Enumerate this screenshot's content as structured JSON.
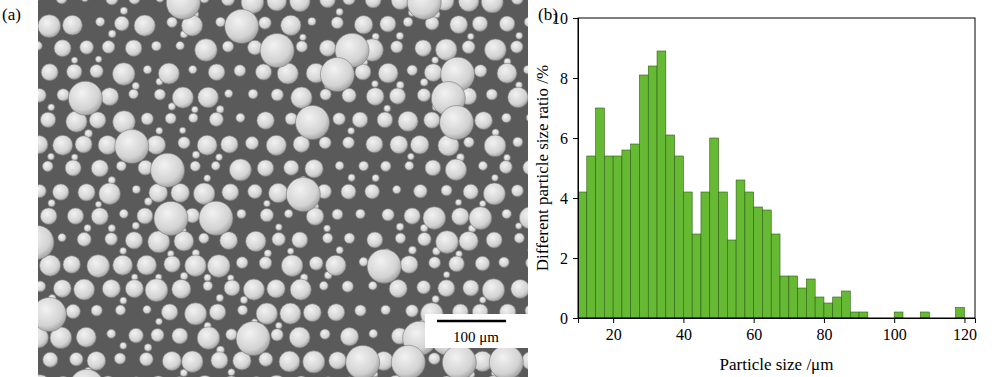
{
  "chart_data": [
    {
      "type": "image",
      "title": "(a)",
      "annotations": [
        "100 μm"
      ]
    },
    {
      "type": "histogram",
      "title": "(b)",
      "x_label": "Particle size /μm",
      "y_label": "Different particle size ratio /%",
      "bins": [
        10,
        12.5,
        15,
        17.5,
        20,
        22.5,
        25,
        27.5,
        30,
        32.5,
        35,
        37.5,
        40,
        42.5,
        45,
        47.5,
        50,
        52.5,
        55,
        57.5,
        60,
        62.5,
        65,
        67.5,
        70,
        72.5,
        75,
        77.5,
        80,
        82.5,
        85,
        87.5,
        90,
        92.5,
        95,
        97.5,
        100,
        102.5,
        105,
        107.5,
        110,
        112.5,
        115,
        117.5,
        120
      ],
      "values": [
        4.2,
        5.4,
        7.0,
        5.4,
        5.4,
        5.6,
        5.8,
        8.1,
        8.4,
        8.9,
        6.1,
        5.4,
        4.2,
        2.8,
        4.2,
        6.0,
        4.2,
        2.6,
        4.6,
        4.2,
        3.7,
        3.6,
        2.8,
        1.4,
        1.4,
        1.0,
        1.3,
        0.7,
        0.5,
        0.7,
        0.9,
        0.2,
        0.2,
        0,
        0,
        0,
        0.2,
        0,
        0,
        0.2,
        0,
        0,
        0,
        0.35
      ],
      "color": "#66b933",
      "xlim": [
        10,
        123
      ],
      "ylim": [
        0,
        10
      ],
      "xticks": [
        20,
        40,
        60,
        80,
        100,
        120
      ],
      "yticks": [
        0,
        2,
        4,
        6,
        8,
        10
      ]
    }
  ]
}
